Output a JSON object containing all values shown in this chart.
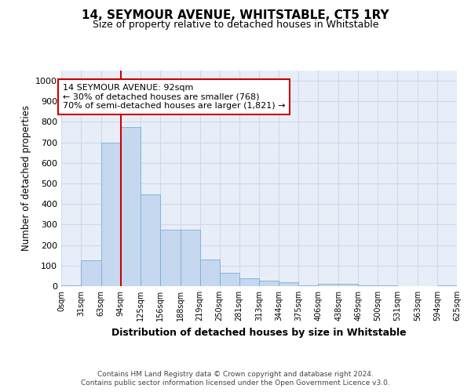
{
  "title": "14, SEYMOUR AVENUE, WHITSTABLE, CT5 1RY",
  "subtitle": "Size of property relative to detached houses in Whitstable",
  "xlabel": "Distribution of detached houses by size in Whitstable",
  "ylabel": "Number of detached properties",
  "footer_line1": "Contains HM Land Registry data © Crown copyright and database right 2024.",
  "footer_line2": "Contains public sector information licensed under the Open Government Licence v3.0.",
  "bin_edges": [
    0,
    31,
    63,
    94,
    125,
    156,
    188,
    219,
    250,
    281,
    313,
    344,
    375,
    406,
    438,
    469,
    500,
    531,
    563,
    594,
    625
  ],
  "bar_heights": [
    5,
    125,
    700,
    775,
    445,
    275,
    275,
    130,
    65,
    40,
    25,
    20,
    5,
    10,
    10,
    5,
    5,
    0,
    0,
    5
  ],
  "bar_color": "#c5d8f0",
  "bar_edge_color": "#7aadd4",
  "property_line_x": 94,
  "property_line_color": "#cc0000",
  "annotation_text": "14 SEYMOUR AVENUE: 92sqm\n← 30% of detached houses are smaller (768)\n70% of semi-detached houses are larger (1,821) →",
  "annotation_box_color": "#ffffff",
  "annotation_box_edge_color": "#cc0000",
  "ylim": [
    0,
    1050
  ],
  "yticks": [
    0,
    100,
    200,
    300,
    400,
    500,
    600,
    700,
    800,
    900,
    1000
  ],
  "grid_color": "#d0d8ea",
  "background_color": "#e8eef8"
}
